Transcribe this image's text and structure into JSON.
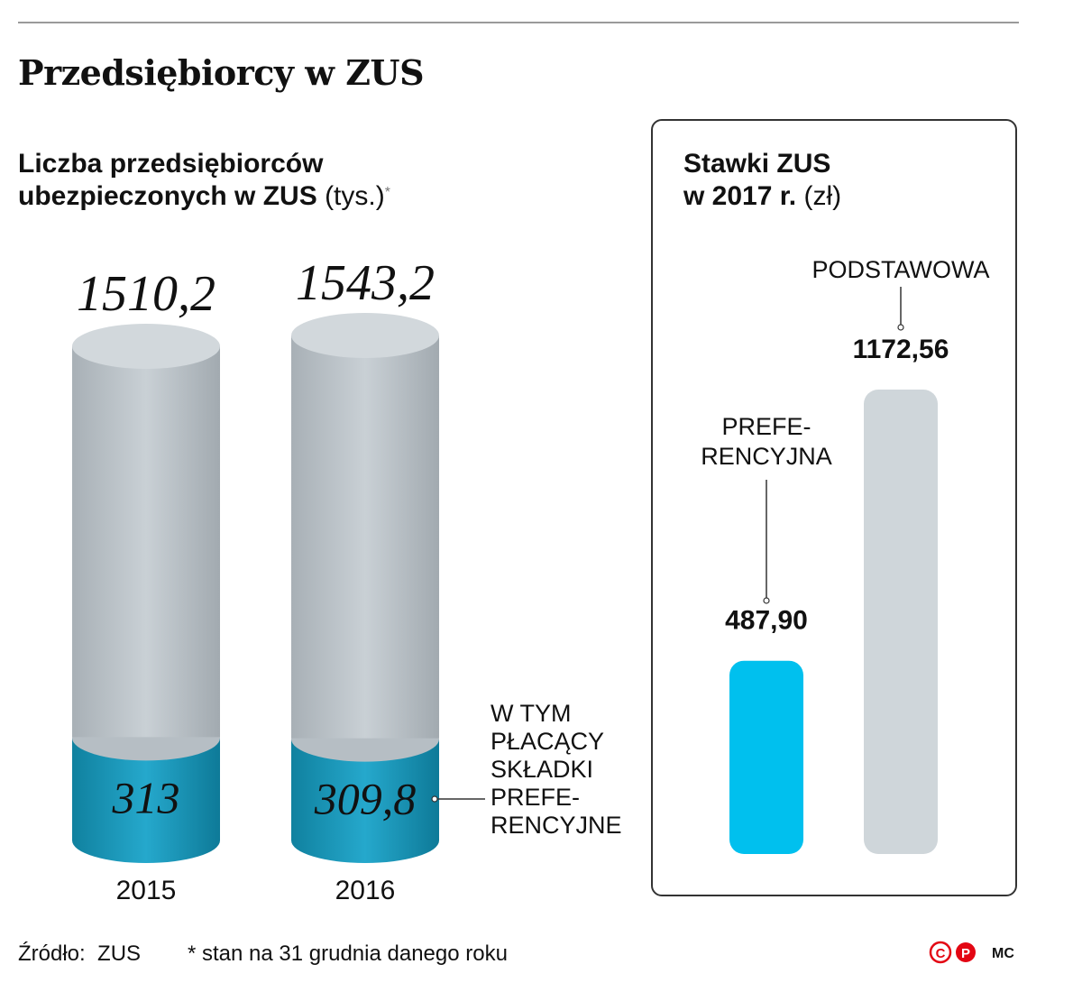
{
  "header": {
    "title": "Przedsiębiorcy w ZUS"
  },
  "left_chart": {
    "subtitle_line1": "Liczba przedsiębiorców",
    "subtitle_line2": "ubezpieczonych w ZUS",
    "unit": "(tys.)",
    "footnote_mark": "*",
    "annotation": [
      "W TYM",
      "PŁACĄCY",
      "SKŁADKI",
      "PREFE-",
      "RENCYJNE"
    ]
  },
  "right_chart": {
    "subtitle_line1": "Stawki ZUS",
    "subtitle_line2": "w 2017 r.",
    "unit": "(zł)"
  },
  "chart_data": [
    {
      "type": "bar",
      "categories": [
        "2015",
        "2016"
      ],
      "series": [
        {
          "name": "",
          "values": [
            1510.2,
            1543.2
          ],
          "labels": [
            "1510,2",
            "1543,2"
          ],
          "color": "#c4cbd1"
        },
        {
          "name": "W TYM PŁACĄCY SKŁADKI PREFERENCYJNE",
          "values": [
            313,
            309.8
          ],
          "labels": [
            "313",
            "309,8"
          ],
          "color": "#1c9dc4"
        }
      ],
      "title": "Liczba przedsiębiorców ubezpieczonych w ZUS (tys.)",
      "ylim": [
        0,
        1543.2
      ],
      "grid": false,
      "legend": "none"
    },
    {
      "type": "bar",
      "categories": [
        "PREFE-RENCYJNA",
        "PODSTAWOWA"
      ],
      "category_lines": [
        [
          "PREFE-",
          "RENCYJNA"
        ],
        [
          "PODSTAWOWA"
        ]
      ],
      "values": [
        487.9,
        1172.56
      ],
      "labels": [
        "487,90",
        "1172,56"
      ],
      "colors": [
        "#00c0ee",
        "#cfd6da"
      ],
      "title": "Stawki ZUS w 2017 r. (zł)",
      "ylim": [
        0,
        1172.56
      ],
      "grid": false,
      "legend": "none"
    }
  ],
  "footer": {
    "source_label": "Źródło:",
    "source_value": "ZUS",
    "note": "* stan na 31 grudnia danego roku",
    "logo_letters": [
      "C",
      "P"
    ],
    "author": "MC"
  },
  "colors": {
    "cylinder_grey": "#c4cbd1",
    "cylinder_blue": "#1c9dc4",
    "bar_blue": "#00c0ee",
    "bar_grey": "#cfd6da",
    "logo_red": "#e30613"
  }
}
